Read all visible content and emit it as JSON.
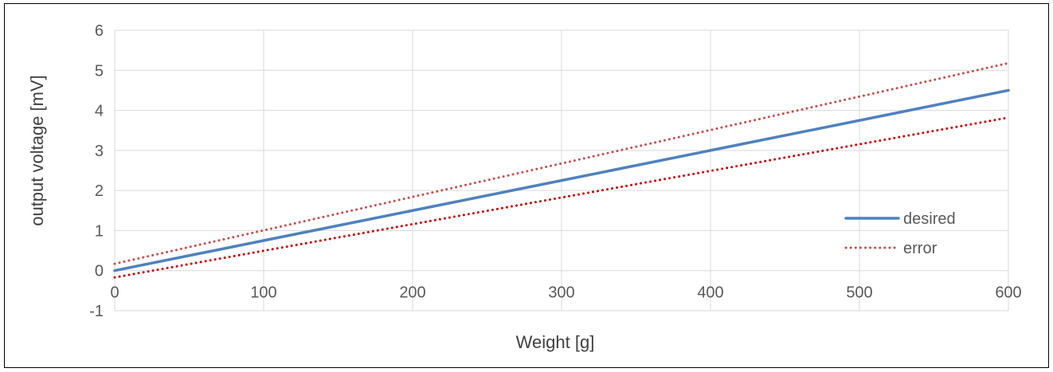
{
  "chart_data": {
    "type": "line",
    "xlabel": "Weight [g]",
    "ylabel": "output voltage [mV]",
    "xlim": [
      0,
      600
    ],
    "ylim": [
      -1,
      6
    ],
    "x_ticks": [
      "0",
      "100",
      "200",
      "300",
      "400",
      "500",
      "600"
    ],
    "y_ticks": [
      "-1",
      "0",
      "1",
      "2",
      "3",
      "4",
      "5",
      "6"
    ],
    "grid": true,
    "legend_position": "bottom-right",
    "series": [
      {
        "name": "desired",
        "color": "#4f81bd",
        "style": "solid",
        "x": [
          0,
          600
        ],
        "y": [
          0,
          4.5
        ]
      },
      {
        "name": "error",
        "color": "#c0504d",
        "style": "dotted",
        "x": [
          0,
          600
        ],
        "y": [
          0.17,
          5.18
        ]
      },
      {
        "name": "",
        "color": "#c00000",
        "style": "dotted",
        "x": [
          0,
          600
        ],
        "y": [
          -0.17,
          3.82
        ]
      }
    ],
    "legend": [
      "desired",
      "error"
    ]
  }
}
